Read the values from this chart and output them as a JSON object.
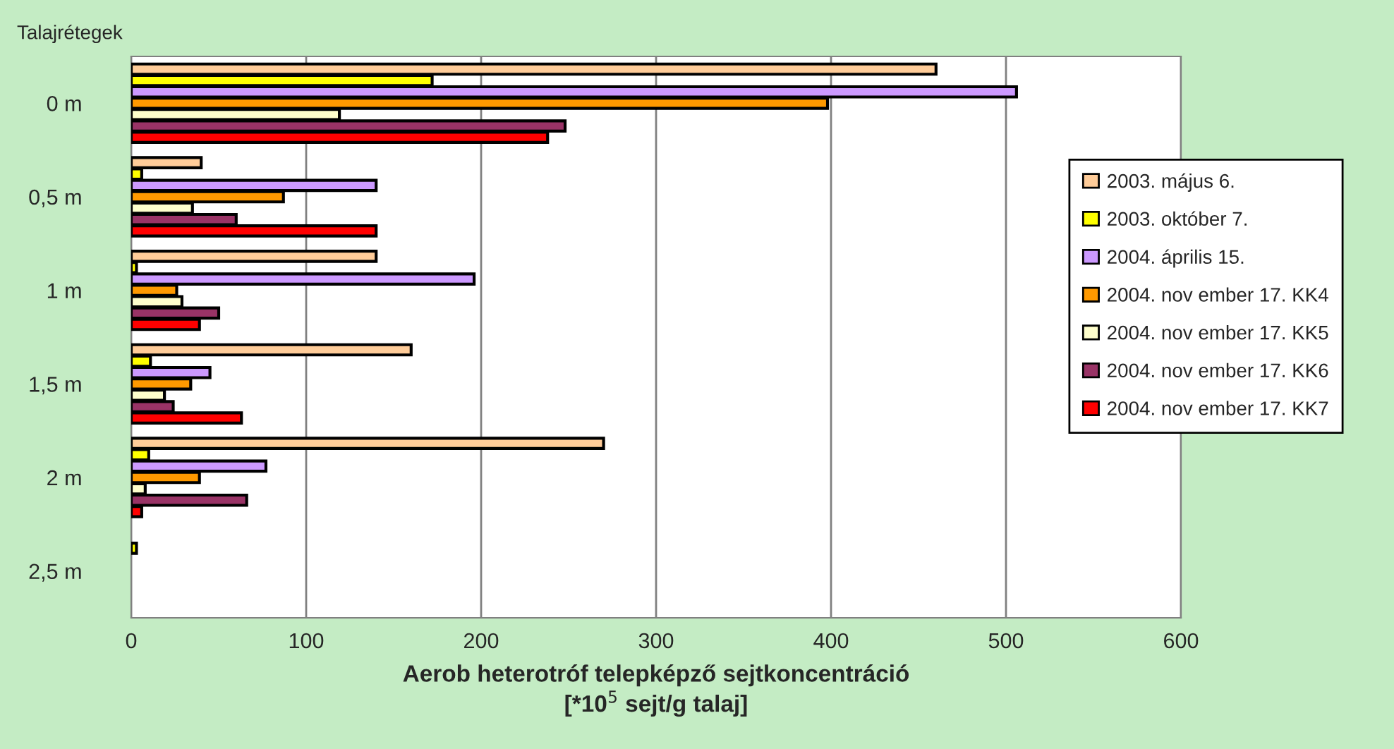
{
  "chart_data": {
    "type": "bar",
    "orientation": "horizontal",
    "ylabel": "Talajrétegek",
    "xlabel": "Aerob heterotróf telepképző sejtkoncentráció\n[*10$^{5}$ sejt/g talaj]",
    "categories": [
      "0 m",
      "0,5 m",
      "1 m",
      "1,5 m",
      "2 m",
      "2,5 m"
    ],
    "series": [
      {
        "name": "2003. május 6.",
        "color": "#ffcc99",
        "values": [
          460,
          40,
          140,
          160,
          270,
          null
        ]
      },
      {
        "name": "2003. október 7.",
        "color": "#ffff00",
        "values": [
          172,
          6,
          3,
          11,
          10,
          3
        ]
      },
      {
        "name": "2004. április 15.",
        "color": "#cc99ff",
        "values": [
          506,
          140,
          196,
          45,
          77,
          null
        ]
      },
      {
        "name": "2004. nov ember 17. KK4",
        "color": "#ff9900",
        "values": [
          398,
          87,
          26,
          34,
          39,
          null
        ]
      },
      {
        "name": "2004. nov ember 17. KK5",
        "color": "#ffffcc",
        "values": [
          119,
          35,
          29,
          19,
          8,
          null
        ]
      },
      {
        "name": "2004. nov ember 17. KK6",
        "color": "#993366",
        "values": [
          248,
          60,
          50,
          24,
          66,
          null
        ]
      },
      {
        "name": "2004. nov ember 17. KK7",
        "color": "#ff0000",
        "values": [
          238,
          140,
          39,
          63,
          6,
          null
        ]
      }
    ],
    "xlim": [
      0,
      600
    ],
    "xticks": [
      0,
      100,
      200,
      300,
      400,
      500,
      600
    ],
    "grid": "x",
    "legend": "right"
  }
}
